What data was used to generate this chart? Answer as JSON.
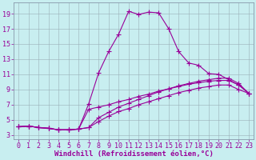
{
  "xlabel": "Windchill (Refroidissement éolien,°C)",
  "xlim": [
    -0.5,
    23.5
  ],
  "ylim": [
    2.5,
    20.5
  ],
  "xticks": [
    0,
    1,
    2,
    3,
    4,
    5,
    6,
    7,
    8,
    9,
    10,
    11,
    12,
    13,
    14,
    15,
    16,
    17,
    18,
    19,
    20,
    21,
    22,
    23
  ],
  "yticks": [
    3,
    5,
    7,
    9,
    11,
    13,
    15,
    17,
    19
  ],
  "bg_color": "#c8eef0",
  "line_color": "#990099",
  "grid_color": "#9ab0b8",
  "line1_x": [
    0,
    1,
    2,
    3,
    4,
    5,
    6,
    7,
    8,
    9,
    10,
    11,
    12,
    13,
    14,
    15,
    16,
    17,
    18,
    19,
    20,
    21,
    22,
    23
  ],
  "line1_y": [
    4.1,
    4.2,
    4.0,
    3.9,
    3.7,
    3.7,
    3.8,
    7.1,
    11.2,
    14.0,
    16.3,
    19.3,
    18.9,
    19.2,
    19.1,
    17.0,
    14.0,
    12.5,
    12.2,
    11.1,
    11.0,
    10.3,
    9.6,
    8.5
  ],
  "line2_x": [
    0,
    1,
    2,
    3,
    4,
    5,
    6,
    7,
    8,
    9,
    10,
    11,
    12,
    13,
    14,
    15,
    16,
    17,
    18,
    19,
    20,
    21,
    22,
    23
  ],
  "line2_y": [
    4.1,
    4.2,
    4.0,
    3.9,
    3.7,
    3.7,
    3.8,
    4.0,
    5.3,
    6.0,
    6.7,
    7.2,
    7.7,
    8.2,
    8.7,
    9.1,
    9.5,
    9.8,
    10.1,
    10.3,
    10.5,
    10.5,
    9.8,
    8.5
  ],
  "line3_x": [
    0,
    1,
    2,
    3,
    4,
    5,
    6,
    7,
    8,
    9,
    10,
    11,
    12,
    13,
    14,
    15,
    16,
    17,
    18,
    19,
    20,
    21,
    22,
    23
  ],
  "line3_y": [
    4.1,
    4.2,
    4.0,
    3.9,
    3.7,
    3.7,
    3.8,
    4.0,
    4.8,
    5.5,
    6.1,
    6.5,
    7.0,
    7.4,
    7.8,
    8.2,
    8.6,
    8.9,
    9.2,
    9.4,
    9.6,
    9.6,
    9.0,
    8.5
  ],
  "line4_x": [
    0,
    1,
    2,
    3,
    4,
    5,
    6,
    7,
    8,
    9,
    10,
    11,
    12,
    13,
    14,
    15,
    16,
    17,
    18,
    19,
    20,
    21,
    22,
    23
  ],
  "line4_y": [
    4.1,
    4.2,
    4.0,
    3.9,
    3.7,
    3.7,
    3.8,
    6.4,
    6.7,
    7.0,
    7.4,
    7.7,
    8.1,
    8.4,
    8.8,
    9.1,
    9.4,
    9.7,
    9.9,
    10.1,
    10.2,
    10.2,
    9.6,
    8.5
  ],
  "xlabel_fontsize": 6.5,
  "tick_fontsize": 6,
  "linewidth": 0.8,
  "markersize": 2.5
}
